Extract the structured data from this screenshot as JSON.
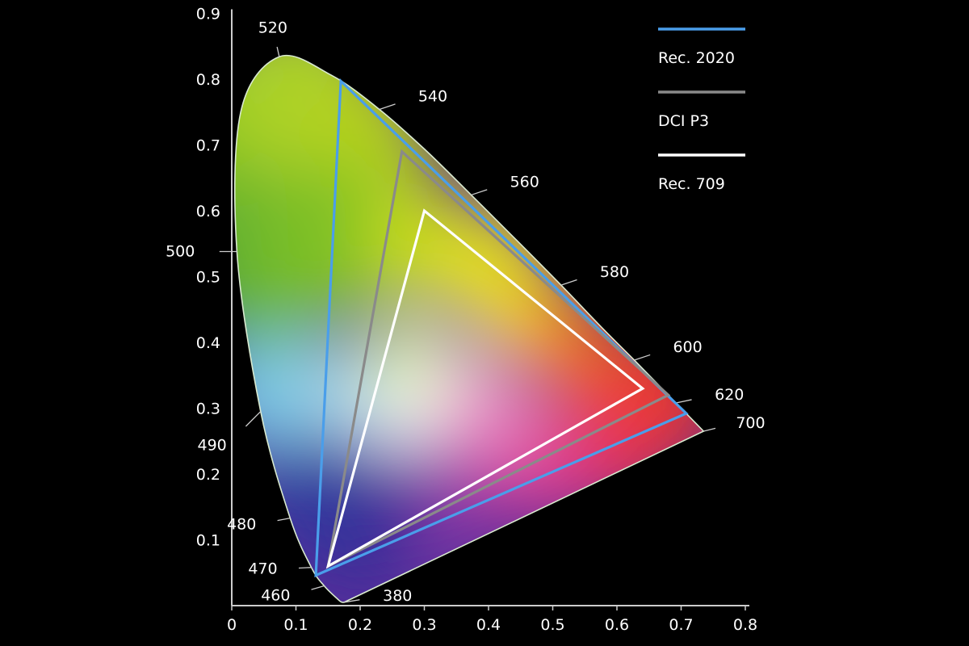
{
  "chart_data": {
    "type": "scatter",
    "title": "",
    "xlabel": "",
    "ylabel": "",
    "xlim": [
      0,
      0.8
    ],
    "ylim": [
      0,
      0.9
    ],
    "x_ticks": [
      "0",
      "0.1",
      "0.2",
      "0.3",
      "0.4",
      "0.5",
      "0.6",
      "0.7",
      "0.8"
    ],
    "y_ticks": [
      "0.1",
      "0.2",
      "0.3",
      "0.4",
      "0.5",
      "0.6",
      "0.7",
      "0.8",
      "0.9"
    ],
    "grid": false,
    "legend_position": "top-right",
    "spectral_locus": [
      [
        0.175,
        0.005
      ],
      [
        0.174,
        0.005
      ],
      [
        0.172,
        0.005
      ],
      [
        0.17,
        0.006
      ],
      [
        0.166,
        0.009
      ],
      [
        0.144,
        0.03
      ],
      [
        0.124,
        0.058
      ],
      [
        0.091,
        0.133
      ],
      [
        0.045,
        0.295
      ],
      [
        0.008,
        0.538
      ],
      [
        0.014,
        0.75
      ],
      [
        0.074,
        0.834
      ],
      [
        0.155,
        0.806
      ],
      [
        0.23,
        0.754
      ],
      [
        0.302,
        0.692
      ],
      [
        0.373,
        0.624
      ],
      [
        0.444,
        0.555
      ],
      [
        0.513,
        0.487
      ],
      [
        0.575,
        0.424
      ],
      [
        0.627,
        0.373
      ],
      [
        0.666,
        0.334
      ],
      [
        0.692,
        0.308
      ],
      [
        0.735,
        0.265
      ]
    ],
    "wavelength_labels": [
      {
        "label": "380",
        "x": 0.175,
        "y": 0.005
      },
      {
        "label": "460",
        "x": 0.144,
        "y": 0.03
      },
      {
        "label": "470",
        "x": 0.124,
        "y": 0.058
      },
      {
        "label": "480",
        "x": 0.091,
        "y": 0.133
      },
      {
        "label": "490",
        "x": 0.045,
        "y": 0.295
      },
      {
        "label": "500",
        "x": 0.008,
        "y": 0.538
      },
      {
        "label": "520",
        "x": 0.074,
        "y": 0.834
      },
      {
        "label": "540",
        "x": 0.23,
        "y": 0.754
      },
      {
        "label": "560",
        "x": 0.373,
        "y": 0.624
      },
      {
        "label": "580",
        "x": 0.513,
        "y": 0.487
      },
      {
        "label": "600",
        "x": 0.627,
        "y": 0.373
      },
      {
        "label": "620",
        "x": 0.692,
        "y": 0.308
      },
      {
        "label": "700",
        "x": 0.735,
        "y": 0.265
      }
    ],
    "series": [
      {
        "name": "Rec. 2020",
        "color": "#4a9eea",
        "points": [
          [
            0.708,
            0.292
          ],
          [
            0.17,
            0.797
          ],
          [
            0.131,
            0.046
          ]
        ]
      },
      {
        "name": "DCI P3",
        "color": "#8a8a8a",
        "points": [
          [
            0.68,
            0.32
          ],
          [
            0.265,
            0.69
          ],
          [
            0.15,
            0.06
          ]
        ]
      },
      {
        "name": "Rec. 709",
        "color": "#ffffff",
        "points": [
          [
            0.64,
            0.33
          ],
          [
            0.3,
            0.6
          ],
          [
            0.15,
            0.06
          ]
        ]
      }
    ]
  }
}
